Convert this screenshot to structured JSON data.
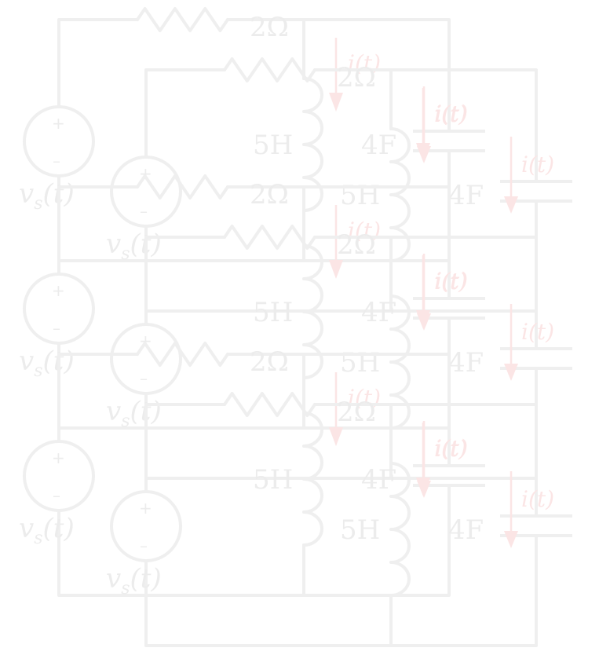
{
  "colors": {
    "wire": "#efefef",
    "label": "#ececec",
    "arrow": "#fbe5e5",
    "background": "#ffffff"
  },
  "circuit": {
    "source_label": "v_s(t)",
    "source_plus": "+",
    "source_minus": "–",
    "resistor_label": "2Ω",
    "inductor_label": "5H",
    "capacitor_label": "4F",
    "current_label": "i(t)"
  }
}
